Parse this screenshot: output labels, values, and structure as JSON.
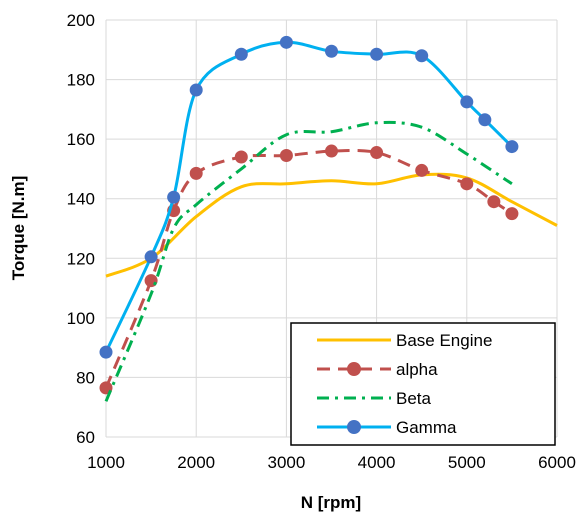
{
  "chart_data": {
    "type": "line",
    "xlabel": "N [rpm]",
    "ylabel": "Torque [N.m]",
    "xlim": [
      1000,
      6000
    ],
    "ylim": [
      60,
      200
    ],
    "xticks": [
      "1000",
      "2000",
      "3000",
      "4000",
      "5000",
      "6000"
    ],
    "yticks": [
      "60",
      "80",
      "100",
      "120",
      "140",
      "160",
      "180",
      "200"
    ],
    "grid": "horizontal and vertical",
    "legend_position": "bottom-right",
    "series": [
      {
        "name": "Base Engine",
        "color": "#FFC000",
        "style": "solid",
        "x": [
          1000,
          1500,
          2000,
          2500,
          3000,
          3500,
          4000,
          4500,
          5000,
          5500,
          6000
        ],
        "y": [
          114,
          120,
          134,
          144,
          145,
          146,
          145,
          148,
          147,
          139,
          131
        ]
      },
      {
        "name": "alpha",
        "color": "#C0504D",
        "style": "dashed",
        "marker": "circle",
        "x": [
          1000,
          1500,
          1750,
          2000,
          2500,
          3000,
          3500,
          4000,
          4500,
          5000,
          5300,
          5500
        ],
        "y": [
          76.5,
          112.5,
          136,
          148.5,
          154,
          154.5,
          156,
          155.5,
          149.5,
          145,
          139,
          135
        ]
      },
      {
        "name": "Beta",
        "color": "#00B050",
        "style": "dashdot",
        "x": [
          1000,
          1500,
          1750,
          2000,
          2500,
          3000,
          3500,
          4000,
          4500,
          5000,
          5500
        ],
        "y": [
          72,
          108,
          130,
          138,
          150,
          161.5,
          162.5,
          165.5,
          164,
          155,
          145
        ]
      },
      {
        "name": "Gamma",
        "color": "#00B0F0",
        "marker_color": "#4472C4",
        "style": "solid",
        "marker": "circle",
        "x": [
          1000,
          1500,
          1750,
          2000,
          2500,
          3000,
          3500,
          4000,
          4500,
          5000,
          5200,
          5500
        ],
        "y": [
          88.5,
          120.5,
          140.5,
          176.5,
          188.5,
          192.5,
          189.5,
          188.5,
          188,
          172.5,
          166.5,
          157.5
        ]
      }
    ]
  }
}
